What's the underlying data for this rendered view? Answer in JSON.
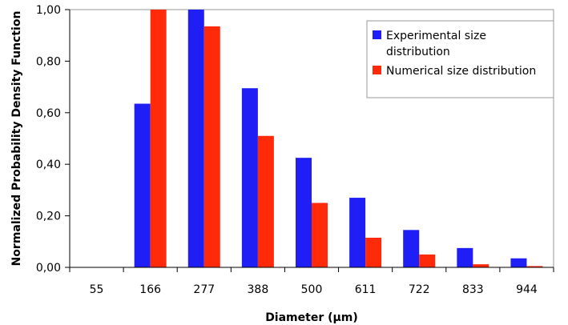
{
  "chart_data": {
    "type": "bar",
    "categories": [
      "55",
      "166",
      "277",
      "388",
      "500",
      "611",
      "722",
      "833",
      "944"
    ],
    "series": [
      {
        "name": "Experimental size distribution",
        "color": "#1f1ff5",
        "values": [
          0.0,
          0.635,
          1.0,
          0.695,
          0.425,
          0.27,
          0.145,
          0.075,
          0.035
        ]
      },
      {
        "name": "Numerical size distribution",
        "color": "#ff2a0a",
        "values": [
          0.0,
          1.0,
          0.935,
          0.51,
          0.25,
          0.115,
          0.05,
          0.012,
          0.005
        ]
      }
    ],
    "xlabel": "Diameter (µm)",
    "ylabel": "Normalized Probability Density Function",
    "ylim": [
      0,
      1
    ],
    "yticks": [
      "0,00",
      "0,20",
      "0,40",
      "0,60",
      "0,80",
      "1,00"
    ],
    "legend": {
      "placement": "top-right",
      "lines": [
        [
          "Experimental size",
          "distribution"
        ],
        [
          "Numerical size distribution"
        ]
      ]
    },
    "grid": false
  }
}
